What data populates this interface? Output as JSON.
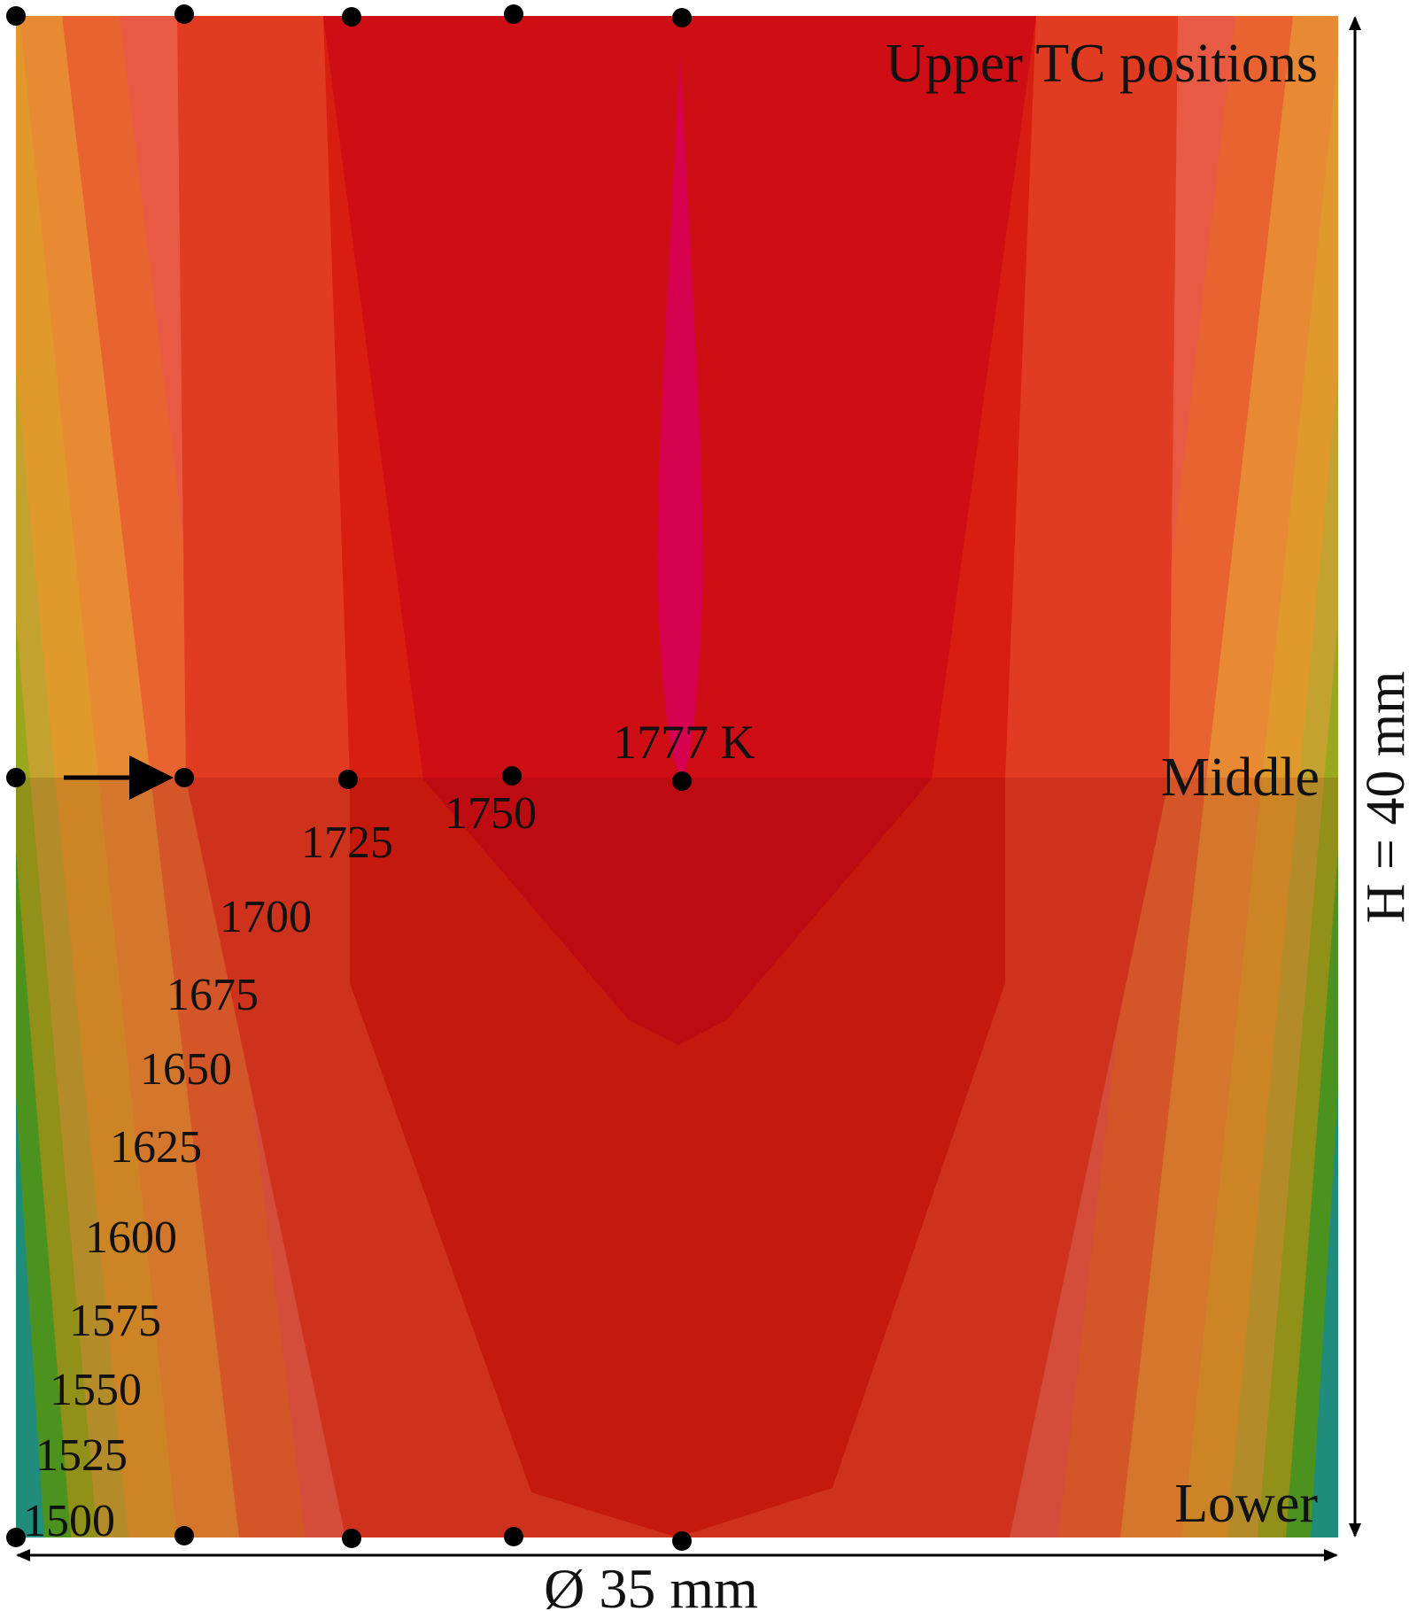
{
  "figure": {
    "title": "Upper TC positions",
    "middle_label": "Middle",
    "lower_label": "Lower",
    "peak_label": "1777 K",
    "height_label": "H = 40 mm",
    "diameter_label": "Ø 35 mm"
  },
  "isotherms": [
    "1750",
    "1725",
    "1700",
    "1675",
    "1650",
    "1625",
    "1600",
    "1575",
    "1550",
    "1525",
    "1500"
  ],
  "thermocouple_rows": [
    "upper",
    "middle",
    "lower"
  ],
  "colors": {
    "hot_core": "#d6004f",
    "t1750": "#cf0d15",
    "t1725": "#d81e10",
    "t1700": "#e13b22",
    "t1675": "#e85a44",
    "t1650": "#e8632f",
    "t1625": "#e88a34",
    "t1600": "#e09a2c",
    "t1575": "#c3a230",
    "t1550": "#9aa81e",
    "t1525": "#4aaa24",
    "t1500": "#17a490",
    "lower_shade": "rgba(90,0,0,0.14)"
  }
}
